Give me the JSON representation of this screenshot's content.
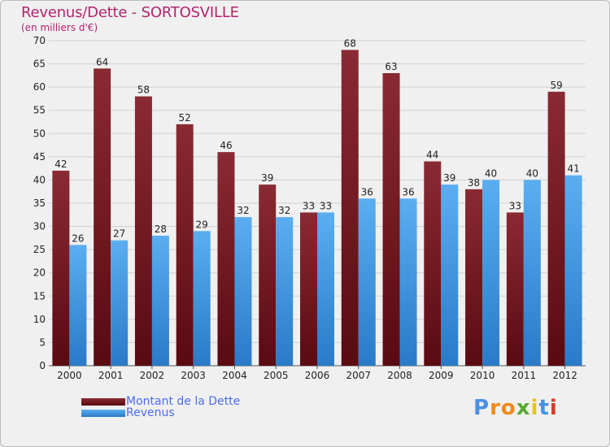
{
  "title": "Revenus/Dette - SORTOSVILLE",
  "subtitle": "(en milliers d'€)",
  "legend": {
    "debt_label": "Montant de la Dette",
    "revenue_label": "Revenus"
  },
  "logo": {
    "letters": [
      "P",
      "r",
      "o",
      "x",
      "i",
      "t",
      "i"
    ],
    "colors": [
      "#4a90e2",
      "#f08a1c",
      "#f08a1c",
      "#5aa832",
      "#e8c21c",
      "#4a90e2",
      "#d83a2a"
    ]
  },
  "colors": {
    "debt_top": "#8a2a32",
    "debt_bottom": "#5a0a12",
    "revenue_top": "#5aaef0",
    "revenue_bottom": "#2a7ac8",
    "axis_text": "#222222",
    "grid": "#cfcfcf"
  },
  "chart_data": {
    "type": "bar",
    "title": "Revenus/Dette - SORTOSVILLE",
    "ylabel": "(en milliers d'€)",
    "xlabel": "",
    "categories": [
      "2000",
      "2001",
      "2002",
      "2003",
      "2004",
      "2005",
      "2006",
      "2007",
      "2008",
      "2009",
      "2010",
      "2011",
      "2012"
    ],
    "series": [
      {
        "name": "Montant de la Dette",
        "values": [
          42,
          64,
          58,
          52,
          46,
          39,
          33,
          68,
          63,
          44,
          38,
          33,
          59
        ]
      },
      {
        "name": "Revenus",
        "values": [
          26,
          27,
          28,
          29,
          32,
          32,
          33,
          36,
          36,
          39,
          40,
          40,
          41
        ]
      }
    ],
    "ylim": [
      0,
      70
    ],
    "yticks": [
      0,
      5,
      10,
      15,
      20,
      25,
      30,
      35,
      40,
      45,
      50,
      55,
      60,
      65,
      70
    ],
    "grid": true,
    "legend_position": "bottom-left"
  }
}
